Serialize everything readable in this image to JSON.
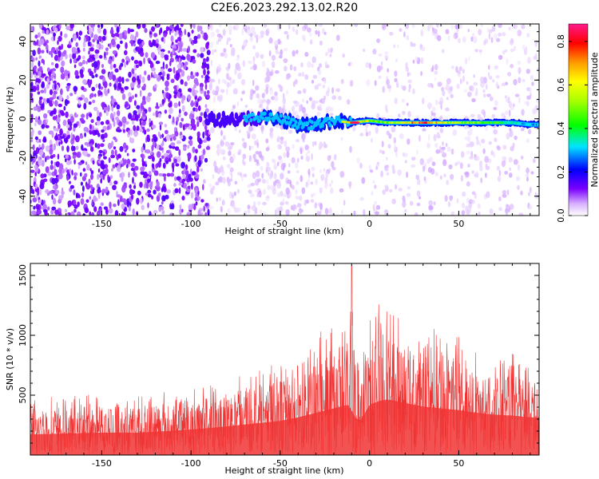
{
  "page": {
    "title": "C2E6.2023.292.13.02.R20"
  },
  "chart_data": [
    {
      "type": "heatmap",
      "title": "C2E6.2023.292.13.02.R20",
      "xlabel": "Height of straight line (km)",
      "ylabel": "Frequency (Hz)",
      "xlim": [
        -190,
        95
      ],
      "ylim": [
        -50,
        49
      ],
      "x_ticks": [
        -150,
        -100,
        -50,
        0,
        50
      ],
      "x_tick_labels": [
        "-150",
        "-100",
        "-50",
        "0",
        "50"
      ],
      "y_ticks": [
        -40,
        -20,
        0,
        20,
        40
      ],
      "y_tick_labels": [
        "-40",
        "-20",
        "0",
        "20",
        "40"
      ],
      "colorbar": {
        "label": "Normalized spectral amplitude",
        "range": [
          0,
          0.88
        ],
        "ticks": [
          0.0,
          0.2,
          0.4,
          0.6,
          0.8
        ],
        "tick_labels": [
          "0.0",
          "0.2",
          "0.4",
          "0.6",
          "0.8"
        ],
        "colormap": "rainbow (white-purple-blue-cyan-green-yellow-orange-red-magenta)"
      },
      "ridge": {
        "description": "strong spectral line near 0 Hz",
        "points": [
          {
            "x": -70,
            "y": 0,
            "amp": 0.25
          },
          {
            "x": -60,
            "y": 1,
            "amp": 0.3
          },
          {
            "x": -50,
            "y": 0,
            "amp": 0.3
          },
          {
            "x": -40,
            "y": -3,
            "amp": 0.35
          },
          {
            "x": -30,
            "y": -3,
            "amp": 0.3
          },
          {
            "x": -20,
            "y": -1,
            "amp": 0.3
          },
          {
            "x": -10,
            "y": -2,
            "amp": 0.75
          },
          {
            "x": 0,
            "y": -1,
            "amp": 0.55
          },
          {
            "x": 10,
            "y": -2,
            "amp": 0.5
          },
          {
            "x": 20,
            "y": -2,
            "amp": 0.6
          },
          {
            "x": 30,
            "y": -2,
            "amp": 0.85
          },
          {
            "x": 40,
            "y": -2,
            "amp": 0.6
          },
          {
            "x": 50,
            "y": -2,
            "amp": 0.5
          },
          {
            "x": 60,
            "y": -2,
            "amp": 0.5
          },
          {
            "x": 70,
            "y": -2,
            "amp": 0.45
          },
          {
            "x": 80,
            "y": -2,
            "amp": 0.35
          },
          {
            "x": 90,
            "y": -3,
            "amp": 0.3
          }
        ],
        "peak": {
          "x": -8,
          "y": -2,
          "amp": 0.85
        }
      },
      "background_noise": {
        "description": "dense purple speckle for x < -90 km, sparse faint speckle elsewhere, near-empty gap around -15 to 0 km",
        "dense_region": [
          -190,
          -90
        ],
        "dense_amp": 0.12,
        "sparse_amp": 0.04
      },
      "grid": false,
      "legend": "none"
    },
    {
      "type": "line",
      "title": "",
      "xlabel": "Height of straight line (km)",
      "ylabel": "SNR (10 * v/v)",
      "xlim": [
        -190,
        95
      ],
      "ylim": [
        0,
        1600
      ],
      "x_ticks": [
        -150,
        -100,
        -50,
        0,
        50
      ],
      "x_tick_labels": [
        "-150",
        "-100",
        "-50",
        "0",
        "50"
      ],
      "y_ticks": [
        500,
        1000,
        1500
      ],
      "y_tick_labels": [
        "500",
        "1000",
        "1500"
      ],
      "color": "#f03434",
      "envelope": {
        "description": "upper envelope of dense red SNR trace",
        "x": [
          -190,
          -170,
          -150,
          -130,
          -110,
          -90,
          -70,
          -50,
          -40,
          -30,
          -20,
          -12,
          -10,
          -8,
          -5,
          0,
          5,
          10,
          20,
          30,
          40,
          50,
          60,
          70,
          80,
          90,
          95
        ],
        "upper": [
          480,
          500,
          520,
          520,
          540,
          600,
          700,
          780,
          900,
          1000,
          1120,
          1180,
          1600,
          1200,
          950,
          1150,
          1280,
          1350,
          1100,
          1050,
          1080,
          1000,
          900,
          850,
          850,
          800,
          780
        ],
        "lower": [
          0,
          0,
          0,
          0,
          0,
          0,
          0,
          0,
          0,
          0,
          0,
          0,
          0,
          0,
          0,
          0,
          0,
          0,
          0,
          0,
          0,
          0,
          0,
          0,
          0,
          0,
          0
        ],
        "mean": [
          230,
          240,
          250,
          250,
          270,
          300,
          340,
          380,
          420,
          470,
          520,
          560,
          500,
          420,
          380,
          560,
          600,
          620,
          580,
          540,
          520,
          500,
          470,
          450,
          440,
          420,
          420
        ]
      },
      "peak": {
        "x": -10,
        "y": 1580
      },
      "grid": false,
      "legend": "none"
    }
  ]
}
